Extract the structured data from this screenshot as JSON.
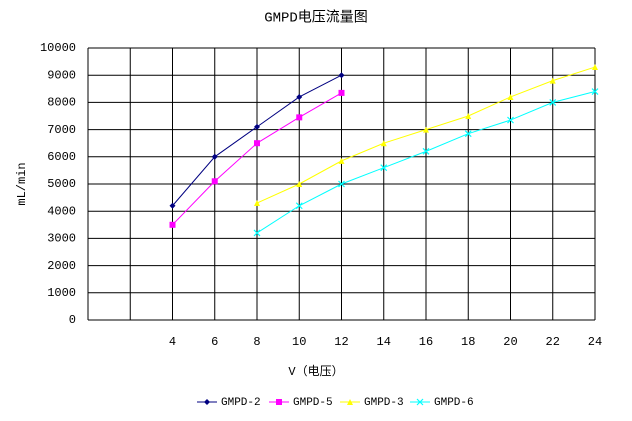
{
  "chart_data": {
    "type": "line",
    "title": "GMPD电压流量图",
    "x_label": "V（电压）",
    "y_label": "mL/min",
    "xlim": [
      0,
      24
    ],
    "xticks": [
      4,
      6,
      8,
      10,
      12,
      14,
      16,
      18,
      20,
      22,
      24
    ],
    "xgrid": [
      0,
      2,
      4,
      6,
      8,
      10,
      12,
      14,
      16,
      18,
      20,
      22,
      24
    ],
    "ylim": [
      0,
      10000
    ],
    "yticks": [
      0,
      1000,
      2000,
      3000,
      4000,
      5000,
      6000,
      7000,
      8000,
      9000,
      10000
    ],
    "grid": true,
    "legend": "bottom",
    "series": [
      {
        "name": "GMPD-2",
        "color": "#000080",
        "marker": "diamond",
        "x": [
          4,
          6,
          8,
          10,
          12
        ],
        "values": [
          4200,
          6000,
          7100,
          8200,
          9000
        ]
      },
      {
        "name": "GMPD-5",
        "color": "#ff00ff",
        "marker": "square",
        "x": [
          4,
          6,
          8,
          10,
          12
        ],
        "values": [
          3500,
          5100,
          6500,
          7450,
          8350
        ]
      },
      {
        "name": "GMPD-3",
        "color": "#ffff00",
        "marker": "triangle",
        "x": [
          8,
          10,
          12,
          14,
          16,
          18,
          20,
          22,
          24
        ],
        "values": [
          4300,
          5000,
          5850,
          6500,
          7000,
          7500,
          8200,
          8800,
          9300
        ]
      },
      {
        "name": "GMPD-6",
        "color": "#00ffff",
        "marker": "cross",
        "x": [
          8,
          10,
          12,
          14,
          16,
          18,
          20,
          22,
          24
        ],
        "values": [
          3200,
          4200,
          5000,
          5600,
          6200,
          6850,
          7350,
          8000,
          8400
        ]
      }
    ]
  }
}
